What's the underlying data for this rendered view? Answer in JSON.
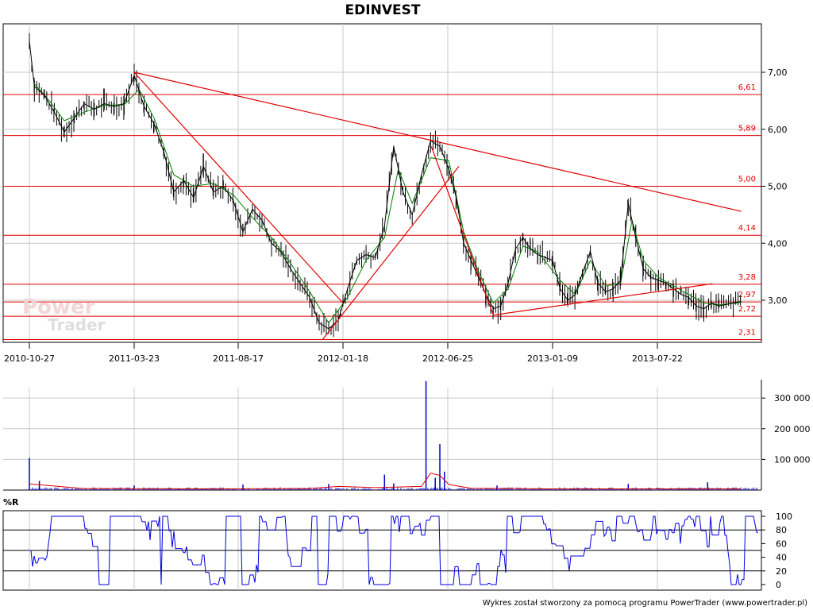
{
  "title": "EDINVEST",
  "footer": "Wykres został stworzony za pomocą programu PowerTrader (www.powertrader.pl)",
  "watermark": {
    "line1": "Power",
    "line2": "Trader"
  },
  "colors": {
    "price": "#000000",
    "ma": "#008000",
    "levels": "#e00000",
    "volume": "#0000c0",
    "volume_ma": "#e00000",
    "wr": "#0000e0",
    "grid": "#c8c8c8"
  },
  "chart_data": [
    {
      "type": "line",
      "title": "EDINVEST",
      "x_ticks": [
        "2010-10-27",
        "2011-03-23",
        "2011-08-17",
        "2012-01-18",
        "2012-06-25",
        "2013-01-09",
        "2013-07-22"
      ],
      "y_ticks": [
        "7,00",
        "6,00",
        "5,00",
        "4,00",
        "3,00"
      ],
      "ylim": [
        2.1,
        7.8
      ],
      "grid": true,
      "levels": [
        {
          "value": 6.61,
          "label": "6,61"
        },
        {
          "value": 5.89,
          "label": "5,89"
        },
        {
          "value": 5.0,
          "label": "5,00"
        },
        {
          "value": 4.14,
          "label": "4,14"
        },
        {
          "value": 3.28,
          "label": "3,28"
        },
        {
          "value": 2.97,
          "label": "2,97"
        },
        {
          "value": 2.72,
          "label": "2,72"
        },
        {
          "value": 2.31,
          "label": "2,31"
        }
      ],
      "trend_lines": [
        {
          "from": [
            "2011-03-23",
            7.0
          ],
          "to": [
            "2013-12-24",
            4.56
          ]
        },
        {
          "from": [
            "2011-03-23",
            7.0
          ],
          "to": [
            "2012-01-18",
            2.95
          ]
        },
        {
          "from": [
            "2011-12-19",
            2.31
          ],
          "to": [
            "2012-07-16",
            5.35
          ]
        },
        {
          "from": [
            "2012-05-31",
            5.7
          ],
          "to": [
            "2012-09-19",
            2.74
          ]
        },
        {
          "from": [
            "2012-09-19",
            2.74
          ],
          "to": [
            "2013-11-01",
            3.29
          ]
        }
      ],
      "series": [
        {
          "name": "",
          "role": "close",
          "points": [
            [
              "2010-10-27",
              7.55
            ],
            [
              "2010-11-03",
              6.75
            ],
            [
              "2010-11-17",
              6.6
            ],
            [
              "2010-12-01",
              6.3
            ],
            [
              "2010-12-15",
              5.95
            ],
            [
              "2010-12-29",
              6.2
            ],
            [
              "2011-01-12",
              6.45
            ],
            [
              "2011-01-26",
              6.35
            ],
            [
              "2011-02-09",
              6.45
            ],
            [
              "2011-02-23",
              6.4
            ],
            [
              "2011-03-09",
              6.45
            ],
            [
              "2011-03-23",
              6.95
            ],
            [
              "2011-04-06",
              6.4
            ],
            [
              "2011-04-20",
              6.1
            ],
            [
              "2011-05-04",
              5.6
            ],
            [
              "2011-05-18",
              4.9
            ],
            [
              "2011-06-01",
              5.1
            ],
            [
              "2011-06-15",
              4.8
            ],
            [
              "2011-06-29",
              5.35
            ],
            [
              "2011-07-13",
              4.9
            ],
            [
              "2011-07-27",
              5.0
            ],
            [
              "2011-08-10",
              4.75
            ],
            [
              "2011-08-24",
              4.2
            ],
            [
              "2011-09-07",
              4.6
            ],
            [
              "2011-09-21",
              4.4
            ],
            [
              "2011-10-05",
              4.0
            ],
            [
              "2011-10-19",
              3.85
            ],
            [
              "2011-11-02",
              3.55
            ],
            [
              "2011-11-16",
              3.3
            ],
            [
              "2011-11-30",
              3.05
            ],
            [
              "2011-12-14",
              2.6
            ],
            [
              "2011-12-28",
              2.5
            ],
            [
              "2012-01-11",
              2.65
            ],
            [
              "2012-01-25",
              3.2
            ],
            [
              "2012-02-08",
              3.7
            ],
            [
              "2012-02-22",
              3.8
            ],
            [
              "2012-03-07",
              3.75
            ],
            [
              "2012-03-21",
              4.3
            ],
            [
              "2012-04-04",
              5.7
            ],
            [
              "2012-04-18",
              4.9
            ],
            [
              "2012-05-02",
              4.5
            ],
            [
              "2012-05-16",
              5.2
            ],
            [
              "2012-05-30",
              5.8
            ],
            [
              "2012-06-13",
              5.7
            ],
            [
              "2012-06-27",
              5.3
            ],
            [
              "2012-07-11",
              4.8
            ],
            [
              "2012-07-25",
              4.0
            ],
            [
              "2012-08-08",
              3.7
            ],
            [
              "2012-08-22",
              3.4
            ],
            [
              "2012-09-05",
              3.1
            ],
            [
              "2012-09-19",
              2.85
            ],
            [
              "2012-10-03",
              2.9
            ],
            [
              "2012-10-17",
              3.3
            ],
            [
              "2012-10-31",
              3.9
            ],
            [
              "2012-11-14",
              4.1
            ],
            [
              "2012-11-28",
              3.9
            ],
            [
              "2012-12-12",
              3.8
            ],
            [
              "2013-01-09",
              3.7
            ],
            [
              "2013-01-23",
              3.2
            ],
            [
              "2013-02-06",
              3.0
            ],
            [
              "2013-02-20",
              3.1
            ],
            [
              "2013-03-06",
              3.5
            ],
            [
              "2013-03-20",
              3.85
            ],
            [
              "2013-04-03",
              3.3
            ],
            [
              "2013-04-17",
              3.15
            ],
            [
              "2013-05-01",
              3.2
            ],
            [
              "2013-05-15",
              3.35
            ],
            [
              "2013-05-29",
              4.7
            ],
            [
              "2013-06-12",
              4.1
            ],
            [
              "2013-06-26",
              3.55
            ],
            [
              "2013-07-10",
              3.4
            ],
            [
              "2013-07-24",
              3.35
            ],
            [
              "2013-08-07",
              3.3
            ],
            [
              "2013-08-21",
              3.2
            ],
            [
              "2013-09-04",
              3.1
            ],
            [
              "2013-09-18",
              3.05
            ],
            [
              "2013-10-02",
              2.9
            ],
            [
              "2013-10-16",
              2.85
            ],
            [
              "2013-10-30",
              2.95
            ],
            [
              "2013-11-13",
              2.9
            ],
            [
              "2013-12-24",
              2.98
            ]
          ]
        },
        {
          "name": "",
          "role": "moving_average",
          "points": [
            [
              "2010-11-03",
              6.8
            ],
            [
              "2010-11-24",
              6.5
            ],
            [
              "2010-12-15",
              6.15
            ],
            [
              "2011-01-12",
              6.3
            ],
            [
              "2011-02-09",
              6.42
            ],
            [
              "2011-03-09",
              6.43
            ],
            [
              "2011-03-30",
              6.7
            ],
            [
              "2011-04-20",
              6.2
            ],
            [
              "2011-05-18",
              5.2
            ],
            [
              "2011-06-15",
              5.0
            ],
            [
              "2011-07-13",
              5.05
            ],
            [
              "2011-08-10",
              4.85
            ],
            [
              "2011-09-07",
              4.45
            ],
            [
              "2011-10-05",
              4.1
            ],
            [
              "2011-11-02",
              3.65
            ],
            [
              "2011-11-30",
              3.15
            ],
            [
              "2011-12-28",
              2.6
            ],
            [
              "2012-01-25",
              3.05
            ],
            [
              "2012-02-22",
              3.7
            ],
            [
              "2012-03-21",
              4.1
            ],
            [
              "2012-04-11",
              5.3
            ],
            [
              "2012-05-02",
              4.7
            ],
            [
              "2012-05-30",
              5.5
            ],
            [
              "2012-06-27",
              5.45
            ],
            [
              "2012-07-25",
              4.2
            ],
            [
              "2012-08-22",
              3.5
            ],
            [
              "2012-09-19",
              2.95
            ],
            [
              "2012-10-17",
              3.2
            ],
            [
              "2012-11-14",
              3.95
            ],
            [
              "2012-12-12",
              3.85
            ],
            [
              "2013-01-23",
              3.35
            ],
            [
              "2013-02-20",
              3.1
            ],
            [
              "2013-03-20",
              3.7
            ],
            [
              "2013-04-17",
              3.25
            ],
            [
              "2013-05-15",
              3.3
            ],
            [
              "2013-06-05",
              4.4
            ],
            [
              "2013-06-26",
              3.7
            ],
            [
              "2013-07-24",
              3.4
            ],
            [
              "2013-08-21",
              3.25
            ],
            [
              "2013-09-18",
              3.1
            ],
            [
              "2013-10-16",
              2.95
            ],
            [
              "2013-11-13",
              2.92
            ],
            [
              "2013-12-24",
              2.96
            ]
          ]
        }
      ]
    },
    {
      "type": "bar",
      "y_ticks": [
        "300 000",
        "200 000",
        "100 000"
      ],
      "ylim": [
        0,
        360000
      ],
      "values_note": "",
      "spikes": [
        [
          "2010-10-27",
          105000
        ],
        [
          "2010-11-10",
          30000
        ],
        [
          "2011-03-23",
          15000
        ],
        [
          "2011-08-24",
          18000
        ],
        [
          "2011-12-28",
          20000
        ],
        [
          "2012-03-21",
          50000
        ],
        [
          "2012-04-04",
          22000
        ],
        [
          "2012-05-23",
          355000
        ],
        [
          "2012-06-06",
          40000
        ],
        [
          "2012-06-13",
          150000
        ],
        [
          "2012-06-20",
          60000
        ],
        [
          "2012-09-26",
          15000
        ],
        [
          "2013-05-29",
          20000
        ],
        [
          "2013-10-23",
          25000
        ]
      ],
      "baseline_volume": 6000,
      "moving_average": [
        [
          "2010-10-27",
          20000
        ],
        [
          "2011-01-12",
          5000
        ],
        [
          "2011-06-15",
          4000
        ],
        [
          "2011-11-30",
          5000
        ],
        [
          "2012-01-11",
          12000
        ],
        [
          "2012-03-07",
          8000
        ],
        [
          "2012-05-16",
          12000
        ],
        [
          "2012-05-30",
          55000
        ],
        [
          "2012-06-13",
          48000
        ],
        [
          "2012-06-27",
          18000
        ],
        [
          "2012-08-08",
          6000
        ],
        [
          "2013-01-09",
          4000
        ],
        [
          "2013-07-24",
          4000
        ],
        [
          "2013-12-24",
          4000
        ]
      ]
    },
    {
      "type": "line",
      "title": "%R",
      "y_ticks": [
        "100",
        "80",
        "60",
        "40",
        "20",
        "0"
      ],
      "ylim": [
        0,
        100
      ],
      "reference_lines": [
        80,
        50,
        20
      ],
      "series": [
        {
          "name": "",
          "points": []
        }
      ]
    }
  ]
}
